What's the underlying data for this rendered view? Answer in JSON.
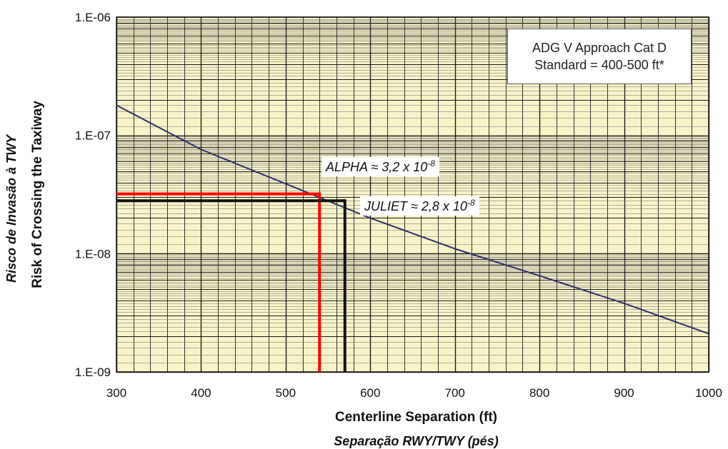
{
  "chart_data": {
    "type": "line",
    "xlabel": "Centerline Separation (ft)",
    "xlabel_pt": "Separação RWY/TWY (pés)",
    "ylabel": "Risk of Crossing the Taxiway",
    "ylabel_pt": "Risco de Invasão à TWY",
    "x_ticks": [
      "300",
      "400",
      "500",
      "600",
      "700",
      "800",
      "900",
      "1000"
    ],
    "y_ticks": [
      "1.E-09",
      "1.E-08",
      "1.E-07",
      "1.E-06"
    ],
    "xlim": [
      300,
      1000
    ],
    "ylim": [
      1e-09,
      1e-06
    ],
    "y_scale": "log",
    "grid": true,
    "background_color": "#f9f4c8",
    "series": [
      {
        "color": "#2b2f6b",
        "x": [
          300,
          400,
          500,
          600,
          700,
          800,
          900,
          1000
        ],
        "y": [
          1.8e-07,
          7.6e-08,
          3.9e-08,
          2e-08,
          1.1e-08,
          6.5e-09,
          3.8e-09,
          2.1e-09
        ]
      }
    ],
    "markers": [
      {
        "label": "ALPHA",
        "x": 540,
        "y": 3.2e-08,
        "color": "#ff0000"
      },
      {
        "label": "JULIET",
        "x": 570,
        "y": 2.8e-08,
        "color": "#111111"
      }
    ]
  },
  "info_box": {
    "line1": "ADG V Approach Cat D",
    "line2": "Standard = 400-500 ft*"
  },
  "callouts": {
    "alpha_text": "ALPHA ≈ 3,2 x 10",
    "alpha_exp": "-8",
    "juliet_text": "JULIET ≈ 2,8 x 10",
    "juliet_exp": "-8"
  }
}
